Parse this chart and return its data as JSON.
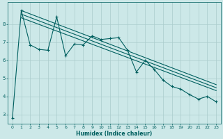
{
  "title": "",
  "xlabel": "Humidex (Indice chaleur)",
  "ylabel": "",
  "bg_color": "#cce8e8",
  "grid_color": "#aacccc",
  "line_color": "#005f5f",
  "xlim": [
    -0.5,
    23.5
  ],
  "ylim": [
    2.5,
    9.2
  ],
  "yticks": [
    3,
    4,
    5,
    6,
    7,
    8
  ],
  "xticks": [
    0,
    1,
    2,
    3,
    4,
    5,
    6,
    7,
    8,
    9,
    10,
    11,
    12,
    13,
    14,
    15,
    16,
    17,
    18,
    19,
    20,
    21,
    22,
    23
  ],
  "xtick_labels": [
    "0",
    "1",
    "2",
    "3",
    "4",
    "5",
    "6",
    "7",
    "8",
    "9",
    "10",
    "11",
    "12",
    "13",
    "14",
    "15",
    "16",
    "17",
    "18",
    "19",
    "20",
    "21",
    "22",
    "23"
  ],
  "data_x": [
    0,
    1,
    2,
    3,
    4,
    5,
    6,
    7,
    8,
    9,
    10,
    11,
    12,
    13,
    14,
    15,
    16,
    17,
    18,
    19,
    20,
    21,
    22,
    23
  ],
  "data_y": [
    2.8,
    8.75,
    6.85,
    6.6,
    6.55,
    8.4,
    6.25,
    6.9,
    6.85,
    7.35,
    7.15,
    7.2,
    7.25,
    6.55,
    5.35,
    6.0,
    5.5,
    4.9,
    4.55,
    4.4,
    4.1,
    3.85,
    4.0,
    3.7
  ],
  "trend_lines": [
    {
      "x": [
        1,
        23
      ],
      "y": [
        8.75,
        4.65
      ]
    },
    {
      "x": [
        1,
        23
      ],
      "y": [
        8.55,
        4.48
      ]
    },
    {
      "x": [
        1,
        23
      ],
      "y": [
        8.35,
        4.32
      ]
    }
  ]
}
